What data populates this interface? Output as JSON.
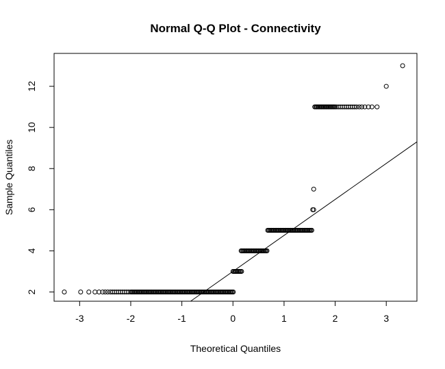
{
  "chart_data": {
    "type": "scatter",
    "title": "Normal Q-Q Plot - Connectivity",
    "xlabel": "Theoretical Quantiles",
    "ylabel": "Sample Quantiles",
    "xlim": [
      -3.5,
      3.6
    ],
    "ylim": [
      1.55,
      13.6
    ],
    "x_ticks": [
      -3,
      -2,
      -1,
      0,
      1,
      2,
      3
    ],
    "x_tick_labels": [
      "-3",
      "-2",
      "-1",
      "0",
      "1",
      "2",
      "3"
    ],
    "y_ticks": [
      2,
      4,
      6,
      8,
      10,
      12
    ],
    "y_tick_labels": [
      "2",
      "4",
      "6",
      "8",
      "10",
      "12"
    ],
    "grid": false,
    "marker": "open-circle",
    "reference_line": {
      "slope": 1.75,
      "intercept": 3.0
    },
    "levels": [
      {
        "y": 2,
        "x_points": [
          -3.3,
          -2.98,
          -2.82,
          -2.7,
          -2.62,
          -2.55,
          -2.5,
          -2.45,
          -2.4,
          -2.36,
          -2.32,
          -2.28,
          -2.24,
          -2.2,
          -2.16,
          -2.12,
          -2.08,
          -2.04
        ],
        "x_from": -2.0,
        "x_to": 0.02
      },
      {
        "y": 3,
        "x_points": [],
        "x_from": 0.0,
        "x_to": 0.18
      },
      {
        "y": 4,
        "x_points": [],
        "x_from": 0.16,
        "x_to": 0.68
      },
      {
        "y": 5,
        "x_points": [],
        "x_from": 0.68,
        "x_to": 1.56
      },
      {
        "y": 6,
        "x_points": [
          1.56,
          1.58
        ],
        "x_from": null,
        "x_to": null
      },
      {
        "y": 7,
        "x_points": [
          1.58
        ],
        "x_from": null,
        "x_to": null
      },
      {
        "y": 11,
        "x_points": [
          2.02,
          2.06,
          2.1,
          2.14,
          2.18,
          2.22,
          2.26,
          2.3,
          2.34,
          2.38,
          2.42,
          2.47,
          2.52,
          2.58,
          2.65,
          2.72,
          2.82
        ],
        "x_from": 1.6,
        "x_to": 2.0
      },
      {
        "y": 12,
        "x_points": [
          3.0
        ],
        "x_from": null,
        "x_to": null
      },
      {
        "y": 13,
        "x_points": [
          3.32
        ],
        "x_from": null,
        "x_to": null
      }
    ]
  }
}
